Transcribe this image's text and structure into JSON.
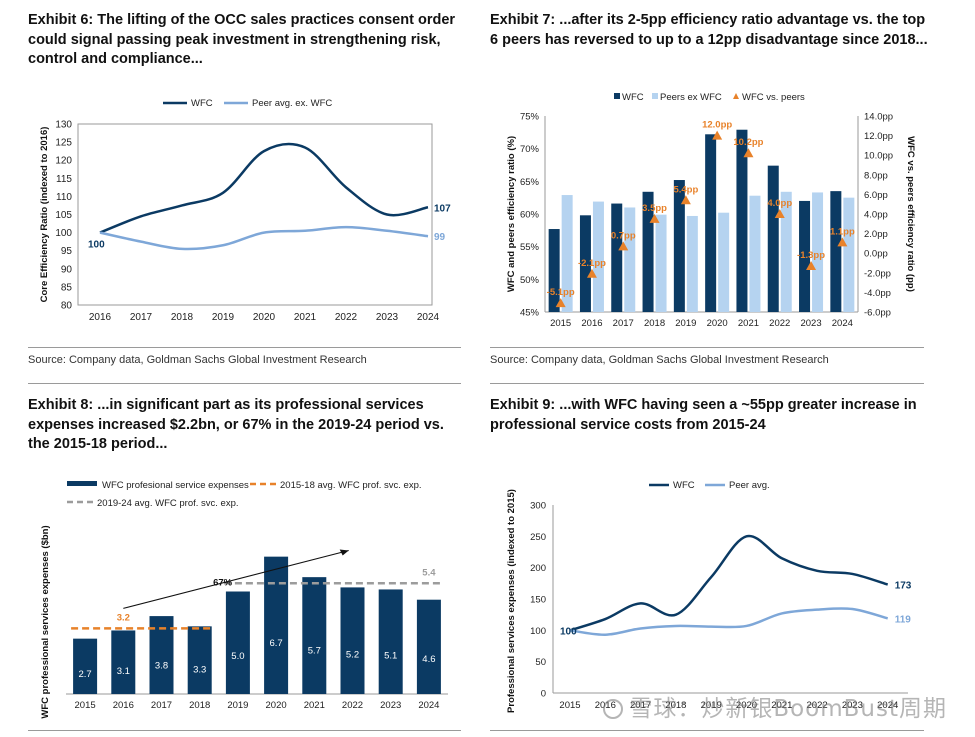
{
  "exhibits": [
    {
      "title": "Exhibit 6: The lifting of the OCC sales practices consent order could signal passing peak investment in strengthening risk, control and compliance...",
      "source": "Source: Company data, Goldman Sachs Global Investment Research"
    },
    {
      "title": "Exhibit 7: ...after its 2-5pp efficiency ratio advantage vs. the top 6 peers has reversed to up to a 12pp disadvantage since 2018...",
      "source": "Source: Company data, Goldman Sachs Global Investment Research"
    },
    {
      "title": "Exhibit 8: ...in significant part as its professional services expenses increased $2.2bn, or 67% in the 2019-24 period vs. the 2015-18 period...",
      "source": ""
    },
    {
      "title": "Exhibit 9: ...with WFC having seen a ~55pp greater increase in professional service costs from 2015-24",
      "source": ""
    }
  ],
  "colors": {
    "navy": "#0b3a63",
    "lightblue": "#7ea7d8",
    "paleblue": "#b5d3f0",
    "orange": "#e8822a",
    "gray": "#9c9c9c"
  },
  "watermark": "雪球：炒新银BoomBust周期",
  "chart_data": [
    {
      "type": "line",
      "x": [
        "2016",
        "2017",
        "2018",
        "2019",
        "2020",
        "2021",
        "2022",
        "2023",
        "2024"
      ],
      "series": [
        {
          "name": "WFC",
          "values": [
            100,
            104.5,
            107.5,
            111,
            122.5,
            123.5,
            112.5,
            105,
            107
          ],
          "end_label": "107",
          "start_label": "100"
        },
        {
          "name": "Peer avg. ex. WFC",
          "values": [
            100,
            97.5,
            95.5,
            96.5,
            100,
            100.5,
            101.5,
            100.5,
            99
          ],
          "end_label": "99"
        }
      ],
      "ylabel": "Core Efficiency Ratio (indexed to 2016)",
      "ylim": [
        80,
        130
      ],
      "yticks": [
        "80",
        "85",
        "90",
        "95",
        "100",
        "105",
        "110",
        "115",
        "120",
        "125",
        "130"
      ],
      "legend": "top-center"
    },
    {
      "type": "bar",
      "categories": [
        "2015",
        "2016",
        "2017",
        "2018",
        "2019",
        "2020",
        "2021",
        "2022",
        "2023",
        "2024"
      ],
      "series": [
        {
          "name": "WFC",
          "values": [
            57.7,
            59.8,
            61.6,
            63.4,
            65.2,
            72.2,
            72.9,
            67.4,
            62.0,
            63.5
          ]
        },
        {
          "name": "Peers ex WFC",
          "values": [
            62.9,
            61.9,
            61.0,
            59.9,
            59.7,
            60.2,
            62.8,
            63.4,
            63.3,
            62.5
          ]
        },
        {
          "name": "WFC vs. peers",
          "axis": "secondary",
          "values": [
            -5.1,
            -2.1,
            0.7,
            3.5,
            5.4,
            12.0,
            10.2,
            4.0,
            -1.3,
            1.1
          ],
          "labels": [
            "-5.1pp",
            "-2.1pp",
            "0.7pp",
            "3.5pp",
            "5.4pp",
            "12.0pp",
            "10.2pp",
            "4.0pp",
            "-1.3pp",
            "1.1pp"
          ]
        }
      ],
      "ylabel": "WFC and peers efficiency ratio (%)",
      "ylim": [
        45,
        75
      ],
      "yticks": [
        "45%",
        "50%",
        "55%",
        "60%",
        "65%",
        "70%",
        "75%"
      ],
      "y2label": "WFC vs. peers efficiency ratio (pp)",
      "y2lim": [
        -6,
        14
      ],
      "y2ticks": [
        "-6.0pp",
        "-4.0pp",
        "-2.0pp",
        "0.0pp",
        "2.0pp",
        "4.0pp",
        "6.0pp",
        "8.0pp",
        "10.0pp",
        "12.0pp",
        "14.0pp"
      ],
      "legend": "top-center"
    },
    {
      "type": "bar",
      "categories": [
        "2015",
        "2016",
        "2017",
        "2018",
        "2019",
        "2020",
        "2021",
        "2022",
        "2023",
        "2024"
      ],
      "series": [
        {
          "name": "WFC profesional service expenses",
          "values": [
            2.7,
            3.1,
            3.8,
            3.3,
            5.0,
            6.7,
            5.7,
            5.2,
            5.1,
            4.6
          ],
          "labels": [
            "2.7",
            "3.1",
            "3.8",
            "3.3",
            "5.0",
            "6.7",
            "5.7",
            "5.2",
            "5.1",
            "4.6"
          ]
        },
        {
          "name": "2015-18 avg. WFC prof. svc. exp.",
          "value": 3.2,
          "label": "3.2"
        },
        {
          "name": "2019-24 avg. WFC prof. svc. exp.",
          "value": 5.4,
          "label": "5.4"
        }
      ],
      "annotation": "67%",
      "ylabel": "WFC professional services expenses ($bn)",
      "ylim": [
        0,
        8
      ],
      "legend": "top-left"
    },
    {
      "type": "line",
      "x": [
        "2015",
        "2016",
        "2017",
        "2018",
        "2019",
        "2020",
        "2021",
        "2022",
        "2023",
        "2024"
      ],
      "series": [
        {
          "name": "WFC",
          "values": [
            100,
            118,
            143,
            125,
            185,
            250,
            215,
            195,
            190,
            173
          ],
          "start_label": "100",
          "end_label": "173"
        },
        {
          "name": "Peer avg.",
          "values": [
            100,
            93,
            103,
            107,
            106,
            107,
            127,
            133,
            134,
            119
          ],
          "end_label": "119"
        }
      ],
      "ylabel": "Professional services expenses (indexed to 2015)",
      "ylim": [
        0,
        300
      ],
      "yticks": [
        "0",
        "50",
        "100",
        "150",
        "200",
        "250",
        "300"
      ],
      "legend": "top-center"
    }
  ]
}
